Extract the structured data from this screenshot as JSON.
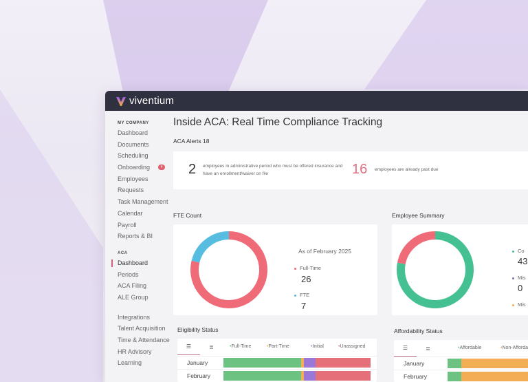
{
  "brand": "viventium",
  "colors": {
    "red": "#ef6b78",
    "blue": "#56bde0",
    "green": "#45c092",
    "orange": "#f2ad55",
    "purple": "#9b78d8",
    "barGreen": "#6cc381",
    "barRed": "#e5707a"
  },
  "sidebar": {
    "sections": [
      {
        "title": "MY COMPANY",
        "items": [
          {
            "label": "Dashboard"
          },
          {
            "label": "Documents"
          },
          {
            "label": "Scheduling"
          },
          {
            "label": "Onboarding",
            "badge": "4"
          },
          {
            "label": "Employees"
          },
          {
            "label": "Requests"
          },
          {
            "label": "Task Management"
          },
          {
            "label": "Calendar"
          },
          {
            "label": "Payroll"
          },
          {
            "label": "Reports & BI"
          }
        ]
      },
      {
        "title": "ACA",
        "items": [
          {
            "label": "Dashboard",
            "active": true
          },
          {
            "label": "Periods"
          },
          {
            "label": "ACA Filing"
          },
          {
            "label": "ALE Group"
          }
        ]
      },
      {
        "title": "",
        "items": [
          {
            "label": "Integrations"
          },
          {
            "label": "Talent Acquisition"
          },
          {
            "label": "Time & Attendance"
          },
          {
            "label": "HR Advisory"
          },
          {
            "label": "Learning"
          }
        ]
      }
    ]
  },
  "main": {
    "title": "Inside ACA: Real Time Compliance Tracking",
    "alerts_label": "ACA Alerts 18",
    "alert1": {
      "value": "2",
      "text": "employees in administrative period who must be offered insurance and have an enrollment/waiver on file"
    },
    "alert2": {
      "value": "16",
      "text": "employees are already past due"
    },
    "fte": {
      "title": "FTE Count",
      "as_of": "As of February 2025",
      "items": [
        {
          "label": "Full-Time",
          "value": 26
        },
        {
          "label": "FTE",
          "value": 7
        }
      ]
    },
    "summary": {
      "title": "Employee Summary",
      "items": [
        {
          "label": "Co",
          "value": "43"
        },
        {
          "label": "Mis",
          "value": "0"
        },
        {
          "label": "Mis",
          "value": ""
        }
      ],
      "donut": [
        {
          "v": 78,
          "c": "green"
        },
        {
          "v": 22,
          "c": "red"
        }
      ]
    },
    "eligibility": {
      "title": "Eligibility Status",
      "legend": [
        "Full-Time",
        "Part-Time",
        "Initial",
        "Unassigned"
      ],
      "rows": [
        {
          "label": "January",
          "values": [
            53,
            1.5,
            8,
            37.5
          ]
        },
        {
          "label": "February",
          "values": [
            53,
            1.5,
            8,
            37.5
          ]
        }
      ]
    },
    "affordability": {
      "title": "Affordability Status",
      "legend": [
        "Affordable",
        "Non-Affordable"
      ],
      "rows": [
        {
          "label": "January",
          "values": [
            10,
            90
          ]
        },
        {
          "label": "February",
          "values": [
            10,
            90
          ]
        }
      ]
    }
  }
}
